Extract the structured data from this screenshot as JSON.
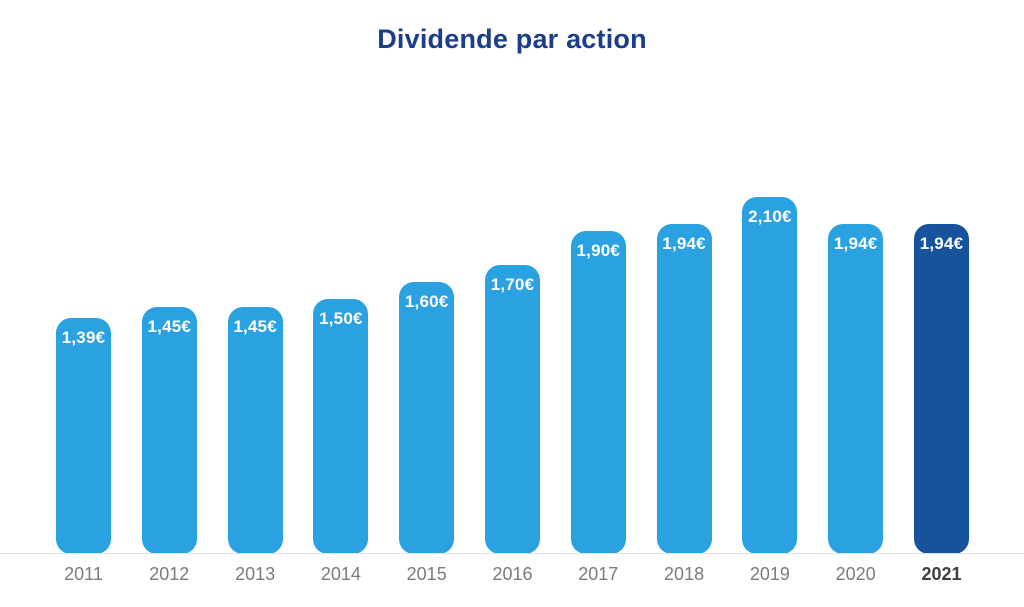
{
  "chart": {
    "title": "Dividende par action"
  },
  "chart_data": {
    "type": "bar",
    "title": "Dividende par action",
    "categories": [
      "2011",
      "2012",
      "2013",
      "2014",
      "2015",
      "2016",
      "2017",
      "2018",
      "2019",
      "2020",
      "2021"
    ],
    "values": [
      1.39,
      1.45,
      1.45,
      1.5,
      1.6,
      1.7,
      1.9,
      1.94,
      2.1,
      1.94,
      1.94
    ],
    "labels": [
      "1,39€",
      "1,45€",
      "1,45€",
      "1,50€",
      "1,60€",
      "1,70€",
      "1,90€",
      "1,94€",
      "2,10€",
      "1,94€",
      "1,94€"
    ],
    "xlabel": "",
    "ylabel": "",
    "ylim": [
      0,
      2.35
    ],
    "grid": false,
    "legend": false,
    "bar_color": "#2AA2E2",
    "highlight_color": "#17539D",
    "highlight_index": 10,
    "title_color": "#1B3D8A",
    "value_label_color": "#FFFFFF",
    "tick_label_color": "#7B7B7B",
    "highlight_tick_color": "#3F3F3F",
    "axis_line_color": "#E3E3E3"
  }
}
